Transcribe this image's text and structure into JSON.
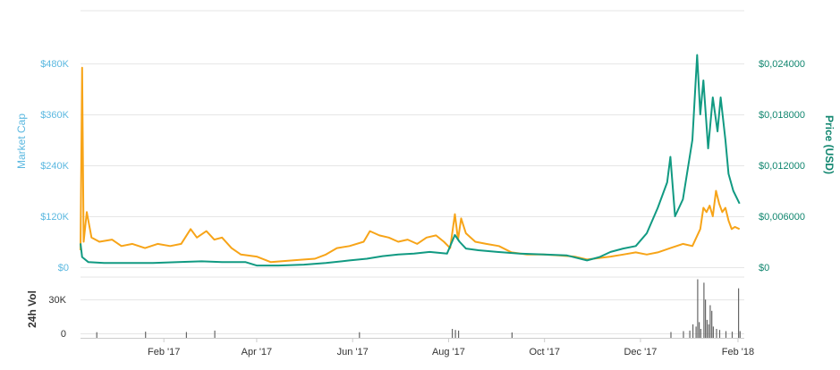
{
  "chart_data": {
    "type": "line",
    "colors": {
      "market_cap": "#f7a418",
      "price": "#119a82",
      "price_axis": "#11866f",
      "market_cap_axis": "#5bb8e0",
      "volume": "#666666",
      "grid": "#e6e6e6"
    },
    "left_axis": {
      "title": "Market Cap",
      "ticks": [
        "$0",
        "$120K",
        "$240K",
        "$360K",
        "$480K"
      ],
      "values": [
        0,
        120000,
        240000,
        360000,
        480000
      ],
      "ylim": [
        0,
        480000
      ]
    },
    "right_axis": {
      "title": "Price (USD)",
      "ticks": [
        "$0",
        "$0,006000",
        "$0,012000",
        "$0,018000",
        "$0,024000"
      ],
      "values": [
        0,
        0.006,
        0.012,
        0.018,
        0.024
      ],
      "ylim": [
        0,
        0.024
      ]
    },
    "volume_axis": {
      "title": "24h Vol",
      "ticks": [
        "0",
        "30K"
      ],
      "values": [
        0,
        30000
      ],
      "ylim": [
        0,
        50000
      ]
    },
    "x_axis": {
      "range": [
        "2016-12-10",
        "2018-02-05"
      ],
      "tick_labels": [
        "Feb '17",
        "Apr '17",
        "Jun '17",
        "Aug '17",
        "Oct '17",
        "Dec '17",
        "Feb '18"
      ],
      "tick_dates": [
        "2017-02-01",
        "2017-04-01",
        "2017-06-01",
        "2017-08-01",
        "2017-10-01",
        "2017-12-01",
        "2018-02-01"
      ]
    },
    "series": [
      {
        "key": "market_cap",
        "axis": "left",
        "points": [
          [
            "2016-12-10",
            40000
          ],
          [
            "2016-12-11",
            470000
          ],
          [
            "2016-12-12",
            60000
          ],
          [
            "2016-12-14",
            130000
          ],
          [
            "2016-12-17",
            70000
          ],
          [
            "2016-12-22",
            60000
          ],
          [
            "2016-12-30",
            65000
          ],
          [
            "2017-01-05",
            50000
          ],
          [
            "2017-01-12",
            55000
          ],
          [
            "2017-01-20",
            45000
          ],
          [
            "2017-01-28",
            55000
          ],
          [
            "2017-02-05",
            50000
          ],
          [
            "2017-02-12",
            55000
          ],
          [
            "2017-02-18",
            90000
          ],
          [
            "2017-02-22",
            70000
          ],
          [
            "2017-02-28",
            85000
          ],
          [
            "2017-03-05",
            65000
          ],
          [
            "2017-03-10",
            70000
          ],
          [
            "2017-03-16",
            45000
          ],
          [
            "2017-03-22",
            30000
          ],
          [
            "2017-04-01",
            25000
          ],
          [
            "2017-04-10",
            12000
          ],
          [
            "2017-04-20",
            15000
          ],
          [
            "2017-05-01",
            18000
          ],
          [
            "2017-05-08",
            20000
          ],
          [
            "2017-05-15",
            30000
          ],
          [
            "2017-05-22",
            45000
          ],
          [
            "2017-05-30",
            50000
          ],
          [
            "2017-06-08",
            60000
          ],
          [
            "2017-06-12",
            85000
          ],
          [
            "2017-06-18",
            75000
          ],
          [
            "2017-06-24",
            70000
          ],
          [
            "2017-06-30",
            60000
          ],
          [
            "2017-07-06",
            65000
          ],
          [
            "2017-07-12",
            55000
          ],
          [
            "2017-07-18",
            70000
          ],
          [
            "2017-07-24",
            75000
          ],
          [
            "2017-07-29",
            60000
          ],
          [
            "2017-08-02",
            45000
          ],
          [
            "2017-08-05",
            125000
          ],
          [
            "2017-08-07",
            65000
          ],
          [
            "2017-08-09",
            115000
          ],
          [
            "2017-08-12",
            80000
          ],
          [
            "2017-08-18",
            60000
          ],
          [
            "2017-08-25",
            55000
          ],
          [
            "2017-09-02",
            50000
          ],
          [
            "2017-09-10",
            35000
          ],
          [
            "2017-09-20",
            30000
          ],
          [
            "2017-09-30",
            30000
          ],
          [
            "2017-10-10",
            28000
          ],
          [
            "2017-10-20",
            25000
          ],
          [
            "2017-10-28",
            18000
          ],
          [
            "2017-11-05",
            22000
          ],
          [
            "2017-11-12",
            25000
          ],
          [
            "2017-11-20",
            30000
          ],
          [
            "2017-11-28",
            35000
          ],
          [
            "2017-12-05",
            30000
          ],
          [
            "2017-12-12",
            35000
          ],
          [
            "2017-12-20",
            45000
          ],
          [
            "2017-12-28",
            55000
          ],
          [
            "2018-01-03",
            50000
          ],
          [
            "2018-01-08",
            90000
          ],
          [
            "2018-01-10",
            140000
          ],
          [
            "2018-01-12",
            130000
          ],
          [
            "2018-01-14",
            145000
          ],
          [
            "2018-01-16",
            120000
          ],
          [
            "2018-01-18",
            180000
          ],
          [
            "2018-01-20",
            150000
          ],
          [
            "2018-01-22",
            130000
          ],
          [
            "2018-01-24",
            140000
          ],
          [
            "2018-01-26",
            110000
          ],
          [
            "2018-01-28",
            90000
          ],
          [
            "2018-01-30",
            95000
          ],
          [
            "2018-02-02",
            90000
          ]
        ]
      },
      {
        "key": "price",
        "axis": "right",
        "points": [
          [
            "2016-12-10",
            0.0028
          ],
          [
            "2016-12-11",
            0.0012
          ],
          [
            "2016-12-15",
            0.0006
          ],
          [
            "2016-12-25",
            0.0005
          ],
          [
            "2017-01-10",
            0.0005
          ],
          [
            "2017-01-25",
            0.0005
          ],
          [
            "2017-02-10",
            0.0006
          ],
          [
            "2017-02-25",
            0.0007
          ],
          [
            "2017-03-10",
            0.0006
          ],
          [
            "2017-03-25",
            0.0006
          ],
          [
            "2017-04-01",
            0.0002
          ],
          [
            "2017-04-15",
            0.0002
          ],
          [
            "2017-05-01",
            0.0003
          ],
          [
            "2017-05-15",
            0.0005
          ],
          [
            "2017-05-30",
            0.0008
          ],
          [
            "2017-06-10",
            0.001
          ],
          [
            "2017-06-20",
            0.0013
          ],
          [
            "2017-06-30",
            0.0015
          ],
          [
            "2017-07-10",
            0.0016
          ],
          [
            "2017-07-20",
            0.0018
          ],
          [
            "2017-07-31",
            0.0016
          ],
          [
            "2017-08-05",
            0.0038
          ],
          [
            "2017-08-08",
            0.003
          ],
          [
            "2017-08-12",
            0.0022
          ],
          [
            "2017-08-20",
            0.002
          ],
          [
            "2017-09-01",
            0.0018
          ],
          [
            "2017-09-15",
            0.0016
          ],
          [
            "2017-10-01",
            0.0015
          ],
          [
            "2017-10-15",
            0.0014
          ],
          [
            "2017-10-28",
            0.0008
          ],
          [
            "2017-11-05",
            0.0012
          ],
          [
            "2017-11-12",
            0.0018
          ],
          [
            "2017-11-20",
            0.0022
          ],
          [
            "2017-11-28",
            0.0025
          ],
          [
            "2017-12-05",
            0.004
          ],
          [
            "2017-12-12",
            0.007
          ],
          [
            "2017-12-18",
            0.01
          ],
          [
            "2017-12-20",
            0.013
          ],
          [
            "2017-12-23",
            0.006
          ],
          [
            "2017-12-28",
            0.008
          ],
          [
            "2018-01-03",
            0.015
          ],
          [
            "2018-01-06",
            0.025
          ],
          [
            "2018-01-08",
            0.018
          ],
          [
            "2018-01-10",
            0.022
          ],
          [
            "2018-01-13",
            0.014
          ],
          [
            "2018-01-16",
            0.02
          ],
          [
            "2018-01-19",
            0.016
          ],
          [
            "2018-01-21",
            0.02
          ],
          [
            "2018-01-24",
            0.015
          ],
          [
            "2018-01-26",
            0.011
          ],
          [
            "2018-01-29",
            0.009
          ],
          [
            "2018-02-02",
            0.0075
          ]
        ]
      }
    ],
    "volume": {
      "points": [
        [
          "2016-12-20",
          1000
        ],
        [
          "2017-01-20",
          1500
        ],
        [
          "2017-02-15",
          1200
        ],
        [
          "2017-03-05",
          2500
        ],
        [
          "2017-06-05",
          1000
        ],
        [
          "2017-08-03",
          4000
        ],
        [
          "2017-08-05",
          3000
        ],
        [
          "2017-08-07",
          2500
        ],
        [
          "2017-09-10",
          800
        ],
        [
          "2017-12-20",
          1200
        ],
        [
          "2017-12-28",
          2000
        ],
        [
          "2018-01-01",
          2500
        ],
        [
          "2018-01-03",
          8000
        ],
        [
          "2018-01-05",
          6000
        ],
        [
          "2018-01-06",
          48000
        ],
        [
          "2018-01-07",
          10000
        ],
        [
          "2018-01-08",
          4000
        ],
        [
          "2018-01-10",
          45000
        ],
        [
          "2018-01-11",
          30000
        ],
        [
          "2018-01-12",
          12000
        ],
        [
          "2018-01-13",
          8000
        ],
        [
          "2018-01-14",
          25000
        ],
        [
          "2018-01-15",
          20000
        ],
        [
          "2018-01-16",
          6000
        ],
        [
          "2018-01-18",
          4000
        ],
        [
          "2018-01-20",
          3000
        ],
        [
          "2018-01-24",
          2000
        ],
        [
          "2018-01-28",
          1500
        ],
        [
          "2018-02-01",
          40000
        ],
        [
          "2018-02-02",
          2000
        ]
      ]
    }
  }
}
